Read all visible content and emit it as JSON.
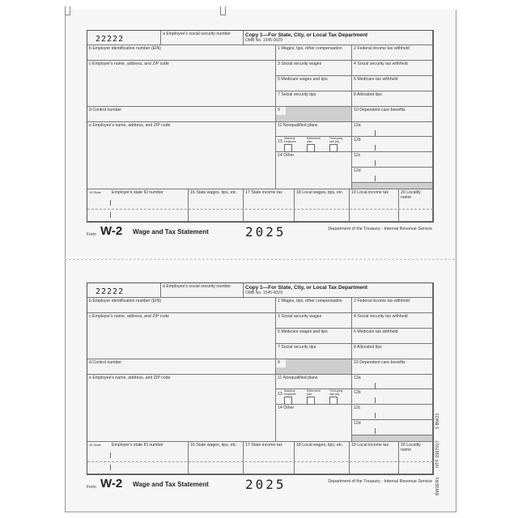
{
  "form": {
    "control_code": "22222",
    "a": "a Employee's social security number",
    "copy_title": "Copy 1—For State, City, or Local Tax Department",
    "omb": "OMB No. 1545-0029",
    "b": "b Employer identification number (EIN)",
    "c": "c Employer's name, address, and ZIP code",
    "d": "d Control number",
    "e": "e Employee's name, address, and ZIP code",
    "box1": "1 Wages, tips, other compensation",
    "box2": "2 Federal income tax withheld",
    "box3": "3 Social security wages",
    "box4": "4 Social security tax withheld",
    "box5": "5 Medicare wages and tips",
    "box6": "6 Medicare tax withheld",
    "box7": "7 Social security tips",
    "box8": "8 Allocated tips",
    "box9": "9",
    "box10": "10 Dependent care benefits",
    "box11": "11 Nonqualified plans",
    "box12a": "12a",
    "box12b": "12b",
    "box12c": "12c",
    "box12d": "12d",
    "box13": "13",
    "box13_statutory": "Statutory employee",
    "box13_retirement": "Retirement plan",
    "box13_thirdparty": "Third-party sick pay",
    "box14": "14 Other",
    "box15": "15 State",
    "box15_id": "Employer's state ID number",
    "box16": "16 State wages, tips, etc.",
    "box17": "17 State income tax",
    "box18": "18 Local wages, tips, etc.",
    "box19": "19 Local income tax",
    "box20": "20 Locality name",
    "footer_form": "Form",
    "footer_w2": "W-2",
    "footer_title": "Wage and Tax Statement",
    "footer_year": "2025",
    "footer_dept": "Department of the Treasury - Internal Revenue Service"
  },
  "side_text": {
    "code1": "BW2ER1",
    "code2": "NTF 2567017",
    "code3": "5  BW21"
  }
}
